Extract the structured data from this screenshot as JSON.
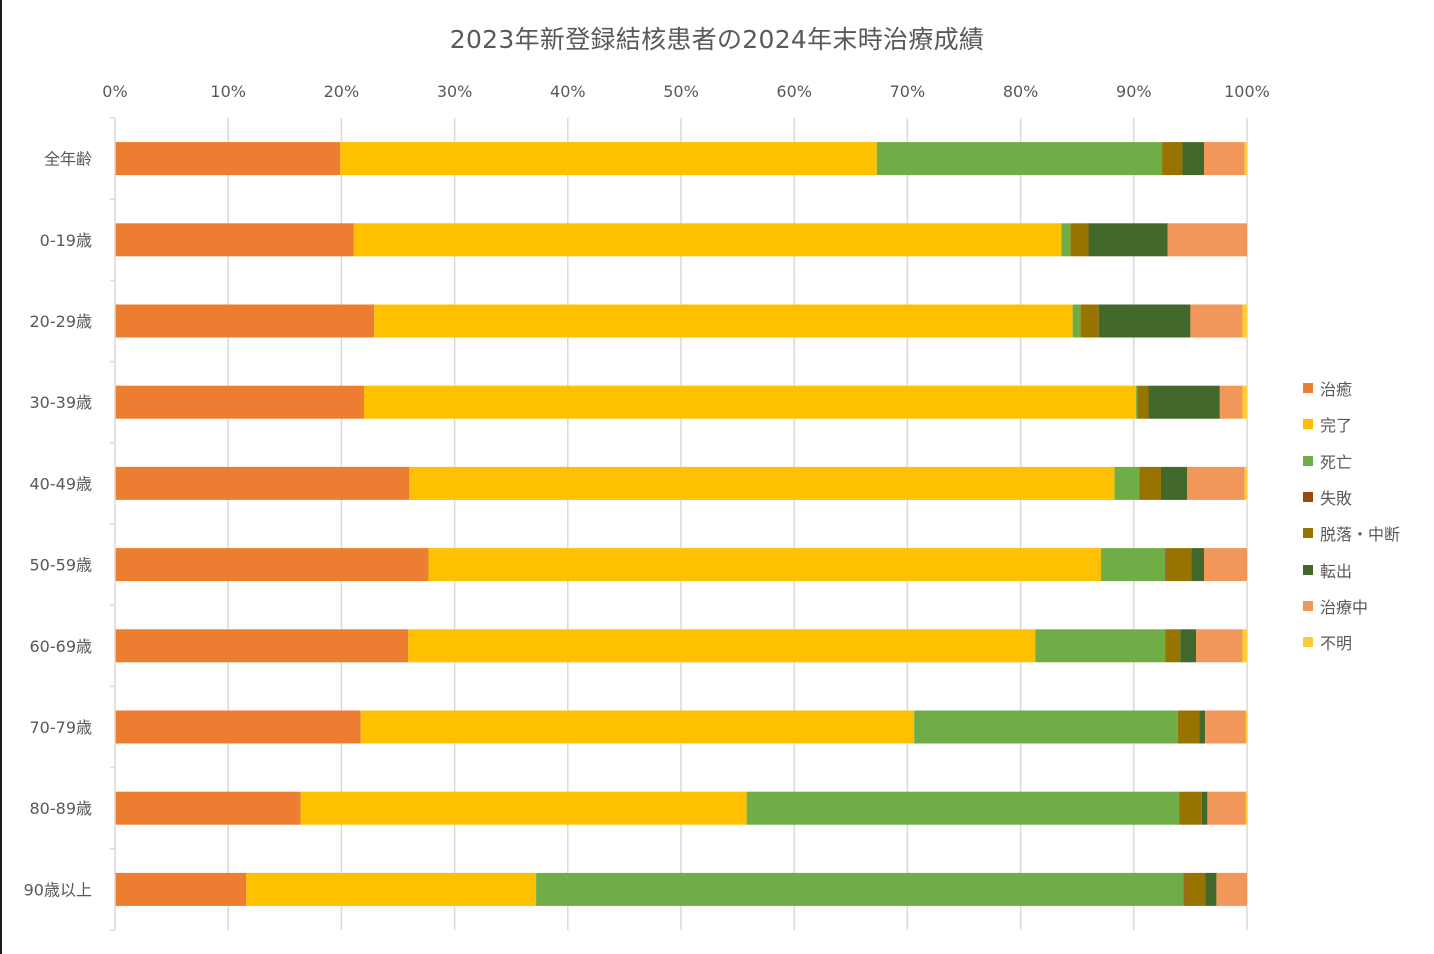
{
  "chart_data": {
    "type": "bar",
    "orientation": "horizontal",
    "stacked": "percent",
    "title": "2023年新登録結核患者の2024年末時治療成績",
    "xlabel": "",
    "ylabel": "",
    "xlim": [
      0,
      100
    ],
    "x_ticks": [
      "0%",
      "10%",
      "20%",
      "30%",
      "40%",
      "50%",
      "60%",
      "70%",
      "80%",
      "90%",
      "100%"
    ],
    "grid": true,
    "legend_position": "right",
    "categories": [
      "全年齢",
      "0-19歳",
      "20-29歳",
      "30-39歳",
      "40-49歳",
      "50-59歳",
      "60-69歳",
      "70-79歳",
      "80-89歳",
      "90歳以上"
    ],
    "series": [
      {
        "name": "治癒",
        "color": "#ED7D31",
        "values": [
          19.9,
          21.1,
          22.9,
          22.0,
          26.0,
          27.7,
          25.9,
          21.7,
          16.4,
          11.6
        ]
      },
      {
        "name": "完了",
        "color": "#FFC000",
        "values": [
          47.4,
          62.5,
          61.7,
          68.2,
          62.3,
          59.4,
          55.4,
          48.9,
          39.4,
          25.6
        ]
      },
      {
        "name": "死亡",
        "color": "#70AD47",
        "values": [
          25.2,
          0.8,
          0.7,
          0.1,
          2.2,
          5.7,
          11.5,
          23.3,
          38.2,
          57.2
        ]
      },
      {
        "name": "失敗",
        "color": "#9E480E",
        "values": [
          0.0,
          0.0,
          0.0,
          0.0,
          0.0,
          0.1,
          0.0,
          0.0,
          0.0,
          0.1
        ]
      },
      {
        "name": "脱落・中断",
        "color": "#997300",
        "values": [
          1.8,
          1.6,
          1.6,
          1.0,
          1.9,
          2.2,
          1.3,
          1.9,
          2.0,
          1.8
        ]
      },
      {
        "name": "転出",
        "color": "#43682B",
        "values": [
          1.9,
          7.0,
          8.1,
          6.3,
          2.3,
          1.1,
          1.4,
          0.5,
          0.5,
          1.0
        ]
      },
      {
        "name": "治療中",
        "color": "#F1975A",
        "values": [
          3.6,
          7.0,
          4.6,
          2.0,
          5.1,
          3.8,
          4.1,
          3.6,
          3.4,
          2.7
        ]
      },
      {
        "name": "不明",
        "color": "#FFCD33",
        "values": [
          0.2,
          0.0,
          0.4,
          0.4,
          0.2,
          0.0,
          0.4,
          0.1,
          0.1,
          0.0
        ]
      }
    ]
  }
}
